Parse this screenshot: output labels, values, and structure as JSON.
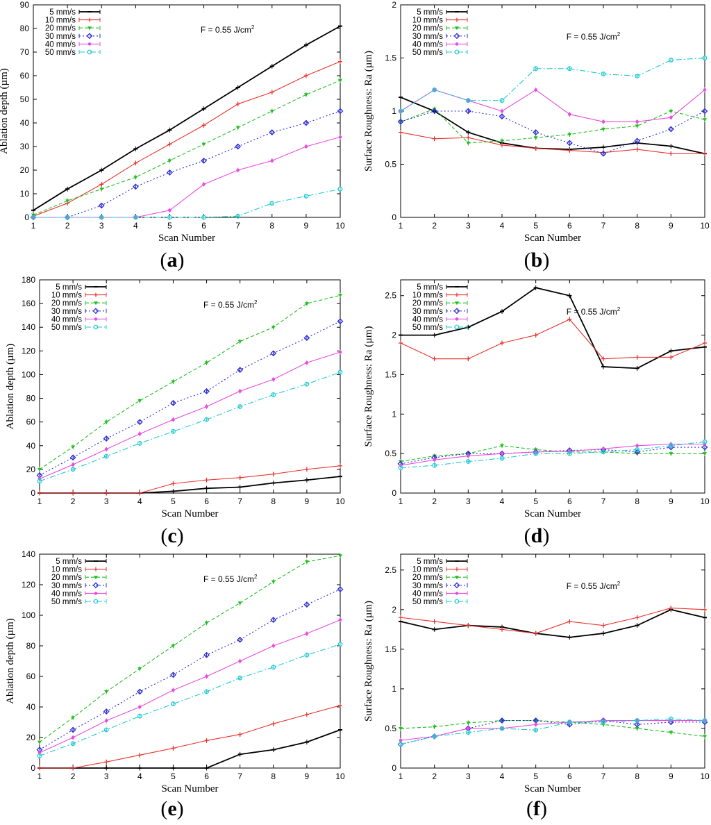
{
  "chart_data": [
    {
      "type": "line",
      "panel": "a",
      "xlabel": "Scan Number",
      "ylabel": "Ablation depth (µm)",
      "annotation": "F = 0.55 J/cm",
      "annotation_sup": "2",
      "x": [
        1,
        2,
        3,
        4,
        5,
        6,
        7,
        8,
        9,
        10
      ],
      "xlim": [
        1,
        10
      ],
      "ylim": [
        0,
        90
      ],
      "yticks": [
        0,
        10,
        20,
        30,
        40,
        50,
        60,
        70,
        80,
        90
      ],
      "series": [
        {
          "name": "5 mm/s",
          "color": "#000000",
          "values": [
            3,
            12,
            20,
            29,
            37,
            46,
            55,
            64,
            73,
            81
          ]
        },
        {
          "name": "10 mm/s",
          "color": "#e8322d",
          "values": [
            0.5,
            6,
            14,
            23,
            31,
            39,
            48,
            53,
            60,
            66
          ]
        },
        {
          "name": "20 mm/s",
          "color": "#1fbf1f",
          "values": [
            1,
            7,
            12,
            17,
            24,
            31,
            38,
            45,
            52,
            58
          ]
        },
        {
          "name": "30 mm/s",
          "color": "#2a2ad4",
          "values": [
            0,
            0,
            5,
            13,
            19,
            24,
            30,
            36,
            40,
            45
          ]
        },
        {
          "name": "40 mm/s",
          "color": "#e84ce0",
          "values": [
            0,
            0,
            0,
            0,
            3,
            14,
            20,
            24,
            30,
            34
          ]
        },
        {
          "name": "50 mm/s",
          "color": "#1fc9cf",
          "values": [
            0,
            0,
            0,
            0,
            0,
            0,
            0.5,
            6,
            9,
            12
          ]
        }
      ]
    },
    {
      "type": "line",
      "panel": "b",
      "xlabel": "Scan Number",
      "ylabel": "Surface Roughness: Ra (µm)",
      "annotation": "F = 0.55 J/cm",
      "annotation_sup": "2",
      "x": [
        1,
        2,
        3,
        4,
        5,
        6,
        7,
        8,
        9,
        10
      ],
      "xlim": [
        1,
        10
      ],
      "ylim": [
        0,
        2
      ],
      "yticks": [
        0,
        0.5,
        1,
        1.5,
        2
      ],
      "series": [
        {
          "name": "5 mm/s",
          "color": "#000000",
          "values": [
            1.13,
            1.0,
            0.8,
            0.7,
            0.65,
            0.64,
            0.66,
            0.7,
            0.67,
            0.6
          ]
        },
        {
          "name": "10 mm/s",
          "color": "#e8322d",
          "values": [
            0.8,
            0.74,
            0.75,
            0.68,
            0.65,
            0.63,
            0.61,
            0.64,
            0.6,
            0.6
          ]
        },
        {
          "name": "20 mm/s",
          "color": "#1fbf1f",
          "values": [
            0.9,
            1.02,
            0.7,
            0.72,
            0.75,
            0.78,
            0.83,
            0.86,
            1.0,
            0.92
          ]
        },
        {
          "name": "30 mm/s",
          "color": "#2a2ad4",
          "values": [
            0.9,
            1.0,
            1.0,
            0.95,
            0.8,
            0.7,
            0.6,
            0.72,
            0.83,
            1.0
          ]
        },
        {
          "name": "40 mm/s",
          "color": "#e84ce0",
          "values": [
            1.0,
            1.2,
            1.1,
            1.0,
            1.2,
            0.97,
            0.9,
            0.9,
            0.94,
            1.2
          ]
        },
        {
          "name": "50 mm/s",
          "color": "#1fc9cf",
          "values": [
            1.0,
            1.2,
            1.1,
            1.1,
            1.4,
            1.4,
            1.35,
            1.33,
            1.48,
            1.5
          ]
        }
      ]
    },
    {
      "type": "line",
      "panel": "c",
      "xlabel": "Scan Number",
      "ylabel": "Ablation depth (µm)",
      "annotation": "F = 0.55 J/cm",
      "annotation_sup": "2",
      "x": [
        1,
        2,
        3,
        4,
        5,
        6,
        7,
        8,
        9,
        10
      ],
      "xlim": [
        1,
        10
      ],
      "ylim": [
        0,
        180
      ],
      "yticks": [
        0,
        20,
        40,
        60,
        80,
        100,
        120,
        140,
        160,
        180
      ],
      "series": [
        {
          "name": "5 mm/s",
          "color": "#000000",
          "values": [
            0,
            0,
            0,
            0,
            1.5,
            4,
            5,
            8.5,
            11,
            14
          ]
        },
        {
          "name": "10 mm/s",
          "color": "#e8322d",
          "values": [
            0,
            0,
            0,
            0,
            8,
            11,
            13,
            16,
            20,
            23
          ]
        },
        {
          "name": "20 mm/s",
          "color": "#1fbf1f",
          "values": [
            20,
            39,
            60,
            78,
            94,
            110,
            128,
            140,
            160,
            167
          ]
        },
        {
          "name": "30 mm/s",
          "color": "#2a2ad4",
          "values": [
            15,
            30,
            46,
            60,
            76,
            86,
            104,
            118,
            131,
            145
          ]
        },
        {
          "name": "40 mm/s",
          "color": "#e84ce0",
          "values": [
            12,
            24,
            37,
            50,
            62,
            73,
            86,
            96,
            110,
            119
          ]
        },
        {
          "name": "50 mm/s",
          "color": "#1fc9cf",
          "values": [
            10,
            20,
            31,
            42,
            52,
            62,
            73,
            83,
            92,
            102
          ]
        }
      ]
    },
    {
      "type": "line",
      "panel": "d",
      "xlabel": "Scan Number",
      "ylabel": "Surface Roughness: Ra (µm)",
      "annotation": "F = 0.55 J/cm",
      "annotation_sup": "2",
      "x": [
        1,
        2,
        3,
        4,
        5,
        6,
        7,
        8,
        9,
        10
      ],
      "xlim": [
        1,
        10
      ],
      "ylim": [
        0,
        2.7
      ],
      "yticks": [
        0,
        0.5,
        1,
        1.5,
        2,
        2.5
      ],
      "series": [
        {
          "name": "5 mm/s",
          "color": "#000000",
          "values": [
            2.0,
            2.0,
            2.1,
            2.3,
            2.6,
            2.5,
            1.6,
            1.58,
            1.8,
            1.85
          ]
        },
        {
          "name": "10 mm/s",
          "color": "#e8322d",
          "values": [
            1.9,
            1.7,
            1.7,
            1.9,
            2.0,
            2.2,
            1.7,
            1.72,
            1.72,
            1.9
          ]
        },
        {
          "name": "20 mm/s",
          "color": "#1fbf1f",
          "values": [
            0.4,
            0.47,
            0.5,
            0.6,
            0.55,
            0.52,
            0.52,
            0.5,
            0.5,
            0.5
          ]
        },
        {
          "name": "30 mm/s",
          "color": "#2a2ad4",
          "values": [
            0.37,
            0.45,
            0.5,
            0.5,
            0.52,
            0.54,
            0.55,
            0.52,
            0.58,
            0.58
          ]
        },
        {
          "name": "40 mm/s",
          "color": "#e84ce0",
          "values": [
            0.35,
            0.42,
            0.47,
            0.5,
            0.52,
            0.53,
            0.56,
            0.6,
            0.62,
            0.62
          ]
        },
        {
          "name": "50 mm/s",
          "color": "#1fc9cf",
          "values": [
            0.32,
            0.35,
            0.4,
            0.44,
            0.5,
            0.5,
            0.52,
            0.55,
            0.6,
            0.65
          ]
        }
      ]
    },
    {
      "type": "line",
      "panel": "e",
      "xlabel": "Scan Number",
      "ylabel": "Ablation depth (µm)",
      "annotation": "F = 0.55 J/cm",
      "annotation_sup": "2",
      "x": [
        1,
        2,
        3,
        4,
        5,
        6,
        7,
        8,
        9,
        10
      ],
      "xlim": [
        1,
        10
      ],
      "ylim": [
        0,
        140
      ],
      "yticks": [
        0,
        20,
        40,
        60,
        80,
        100,
        120,
        140
      ],
      "series": [
        {
          "name": "5 mm/s",
          "color": "#000000",
          "values": [
            0,
            0,
            0,
            0,
            0,
            0,
            9,
            12,
            17,
            25
          ]
        },
        {
          "name": "10 mm/s",
          "color": "#e8322d",
          "values": [
            0,
            0,
            4,
            8.5,
            13,
            18,
            22,
            29,
            35,
            41
          ]
        },
        {
          "name": "20 mm/s",
          "color": "#1fbf1f",
          "values": [
            17,
            33,
            50,
            65,
            80,
            95,
            108,
            122,
            135,
            139
          ]
        },
        {
          "name": "30 mm/s",
          "color": "#2a2ad4",
          "values": [
            12,
            25,
            37,
            50,
            61,
            74,
            84,
            97,
            107,
            117
          ]
        },
        {
          "name": "40 mm/s",
          "color": "#e84ce0",
          "values": [
            10,
            20,
            31,
            40,
            51,
            60,
            70,
            80,
            88,
            97
          ]
        },
        {
          "name": "50 mm/s",
          "color": "#1fc9cf",
          "values": [
            8,
            16,
            25,
            34,
            42,
            50,
            59,
            66,
            74,
            81
          ]
        }
      ]
    },
    {
      "type": "line",
      "panel": "f",
      "xlabel": "Scan Number",
      "ylabel": "Surface Roughness: Ra (µm)",
      "annotation": "F = 0.55 J/cm",
      "annotation_sup": "2",
      "x": [
        1,
        2,
        3,
        4,
        5,
        6,
        7,
        8,
        9,
        10
      ],
      "xlim": [
        1,
        10
      ],
      "ylim": [
        0,
        2.7
      ],
      "yticks": [
        0,
        0.5,
        1,
        1.5,
        2,
        2.5
      ],
      "series": [
        {
          "name": "5 mm/s",
          "color": "#000000",
          "values": [
            1.85,
            1.75,
            1.8,
            1.78,
            1.7,
            1.65,
            1.7,
            1.8,
            2.0,
            1.9
          ]
        },
        {
          "name": "10 mm/s",
          "color": "#e8322d",
          "values": [
            1.9,
            1.85,
            1.8,
            1.75,
            1.7,
            1.85,
            1.8,
            1.9,
            2.02,
            2.0
          ]
        },
        {
          "name": "20 mm/s",
          "color": "#1fbf1f",
          "values": [
            0.5,
            0.52,
            0.57,
            0.6,
            0.6,
            0.58,
            0.55,
            0.5,
            0.45,
            0.4
          ]
        },
        {
          "name": "30 mm/s",
          "color": "#2a2ad4",
          "values": [
            0.3,
            0.4,
            0.5,
            0.6,
            0.6,
            0.55,
            0.6,
            0.55,
            0.58,
            0.58
          ]
        },
        {
          "name": "40 mm/s",
          "color": "#e84ce0",
          "values": [
            0.35,
            0.4,
            0.5,
            0.5,
            0.55,
            0.58,
            0.6,
            0.6,
            0.6,
            0.6
          ]
        },
        {
          "name": "50 mm/s",
          "color": "#1fc9cf",
          "values": [
            0.3,
            0.4,
            0.45,
            0.5,
            0.48,
            0.58,
            0.58,
            0.6,
            0.62,
            0.6
          ]
        }
      ]
    }
  ],
  "panel_labels": [
    "a",
    "b",
    "c",
    "d",
    "e",
    "f"
  ]
}
